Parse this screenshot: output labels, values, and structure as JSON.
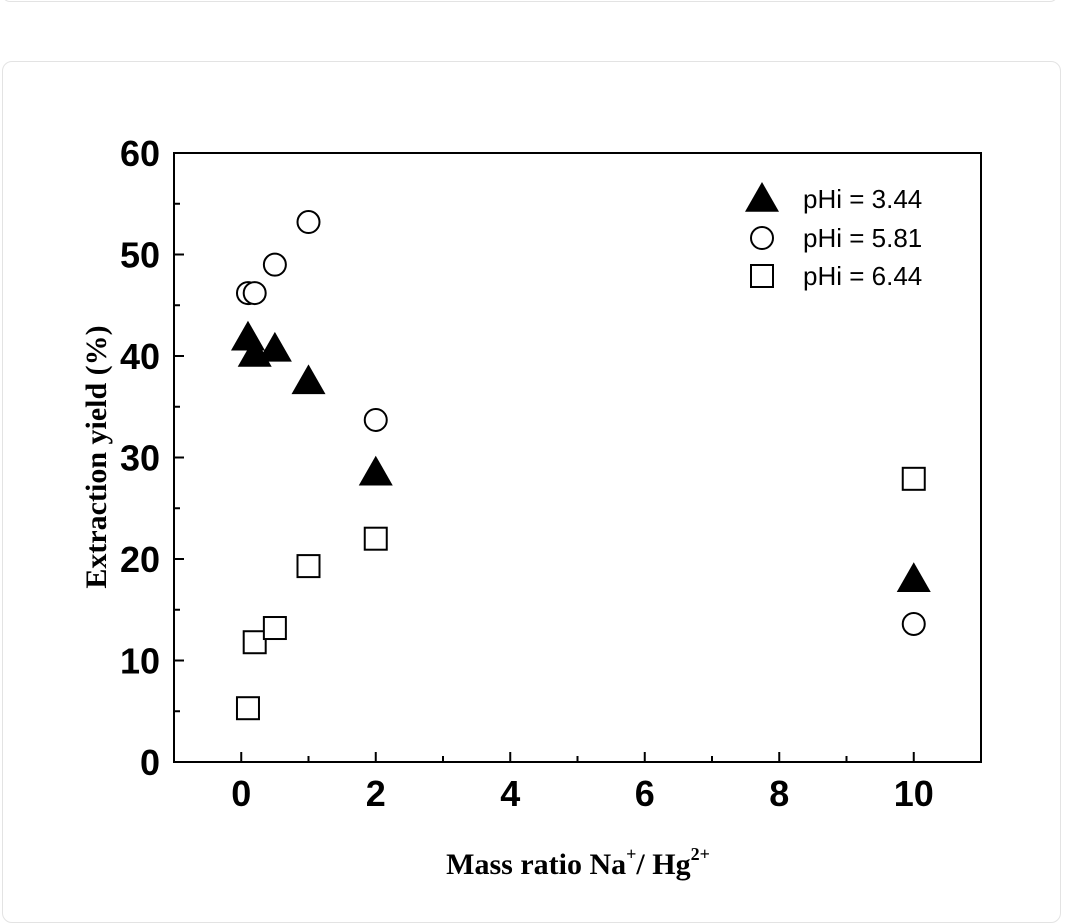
{
  "chart_data": {
    "type": "scatter",
    "title": "",
    "xlabel": "Mass ratio Na",
    "xlabel_sup1": "+",
    "xlabel_mid": "/ Hg",
    "xlabel_sup2": "2+",
    "ylabel": "Extraction yield (%)",
    "xlim": [
      -1,
      11
    ],
    "ylim": [
      0,
      60
    ],
    "xticks": [
      0,
      2,
      4,
      6,
      8,
      10
    ],
    "yticks": [
      0,
      10,
      20,
      30,
      40,
      50,
      60
    ],
    "legend_position": "top-right",
    "grid": false,
    "series": [
      {
        "name": "pHi = 3.44",
        "marker": "filled-triangle",
        "points": [
          [
            0.1,
            41.8
          ],
          [
            0.2,
            40.2
          ],
          [
            0.5,
            40.7
          ],
          [
            1,
            37.5
          ],
          [
            2,
            28.5
          ],
          [
            10,
            18.0
          ]
        ]
      },
      {
        "name": "pHi = 5.81",
        "marker": "open-circle",
        "points": [
          [
            0.1,
            46.2
          ],
          [
            0.2,
            46.2
          ],
          [
            0.5,
            49.0
          ],
          [
            1,
            53.2
          ],
          [
            2,
            33.7
          ],
          [
            10,
            13.6
          ]
        ]
      },
      {
        "name": "pHi = 6.44",
        "marker": "open-square",
        "points": [
          [
            0.1,
            5.3
          ],
          [
            0.2,
            11.8
          ],
          [
            0.5,
            13.2
          ],
          [
            1,
            19.3
          ],
          [
            2,
            22.0
          ],
          [
            10,
            27.9
          ]
        ]
      }
    ]
  }
}
